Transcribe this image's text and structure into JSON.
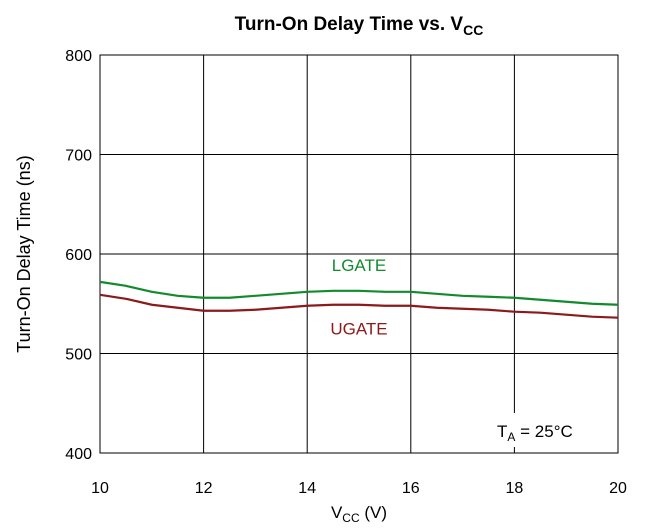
{
  "chart_data": {
    "type": "line",
    "title": {
      "main": "Turn-On Delay Time vs. V",
      "sub": "CC"
    },
    "x_label": {
      "main": "V",
      "sub": "CC",
      "tail": " (V)"
    },
    "y_label": "Turn-On Delay Time (ns)",
    "annotation": {
      "main": "T",
      "sub": "A",
      "tail": " = 25°C"
    },
    "x": [
      10,
      10.5,
      11,
      11.5,
      12,
      12.5,
      13,
      13.5,
      14,
      14.5,
      15,
      15.5,
      16,
      16.5,
      17,
      17.5,
      18,
      18.5,
      19,
      19.5,
      20
    ],
    "series": [
      {
        "name": "LGATE",
        "color": "#138a2e",
        "values": [
          572,
          568,
          562,
          558,
          556,
          556,
          558,
          560,
          562,
          563,
          563,
          562,
          562,
          560,
          558,
          557,
          556,
          554,
          552,
          550,
          549
        ]
      },
      {
        "name": "UGATE",
        "color": "#8b1a1a",
        "values": [
          559,
          555,
          549,
          546,
          543,
          543,
          544,
          546,
          548,
          549,
          549,
          548,
          548,
          546,
          545,
          544,
          542,
          541,
          539,
          537,
          536
        ]
      }
    ],
    "xlim": [
      10,
      20
    ],
    "xticks": [
      10,
      12,
      14,
      16,
      18,
      20
    ],
    "ylim": [
      400,
      800
    ],
    "yticks": [
      400,
      500,
      600,
      700,
      800
    ],
    "grid": true
  }
}
